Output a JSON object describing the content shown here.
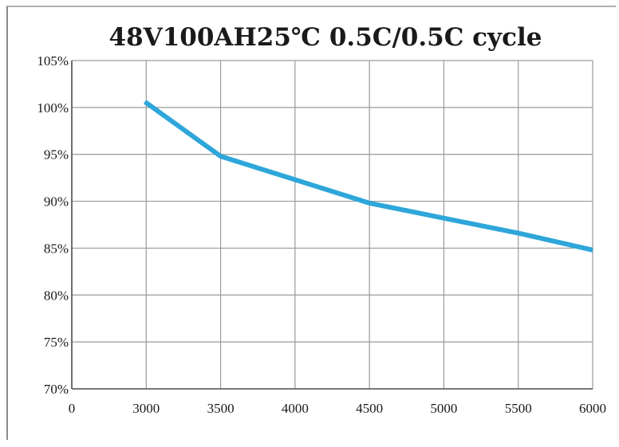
{
  "chart_data": {
    "type": "line",
    "title": "48V100AH25℃ 0.5C/0.5C cycle",
    "xlabel": "",
    "ylabel": "",
    "x_ticks": [
      {
        "value": 0,
        "label": "0"
      },
      {
        "value": 3000,
        "label": "3000"
      },
      {
        "value": 3500,
        "label": "3500"
      },
      {
        "value": 4000,
        "label": "4000"
      },
      {
        "value": 4500,
        "label": "4500"
      },
      {
        "value": 5000,
        "label": "5000"
      },
      {
        "value": 5500,
        "label": "5500"
      },
      {
        "value": 6000,
        "label": "6000"
      }
    ],
    "y_ticks": [
      {
        "value": 70,
        "label": "70%"
      },
      {
        "value": 75,
        "label": "75%"
      },
      {
        "value": 80,
        "label": "80%"
      },
      {
        "value": 85,
        "label": "85%"
      },
      {
        "value": 90,
        "label": "90%"
      },
      {
        "value": 95,
        "label": "95%"
      },
      {
        "value": 100,
        "label": "100%"
      },
      {
        "value": 105,
        "label": "105%"
      }
    ],
    "ylim": [
      70,
      105
    ],
    "grid": true,
    "series": [
      {
        "color": "#2ea6da",
        "points": [
          {
            "x": 2950,
            "y": 100.6
          },
          {
            "x": 3500,
            "y": 94.8
          },
          {
            "x": 4000,
            "y": 92.3
          },
          {
            "x": 4500,
            "y": 89.8
          },
          {
            "x": 5000,
            "y": 88.2
          },
          {
            "x": 5500,
            "y": 86.6
          },
          {
            "x": 6000,
            "y": 84.8
          }
        ]
      }
    ]
  }
}
